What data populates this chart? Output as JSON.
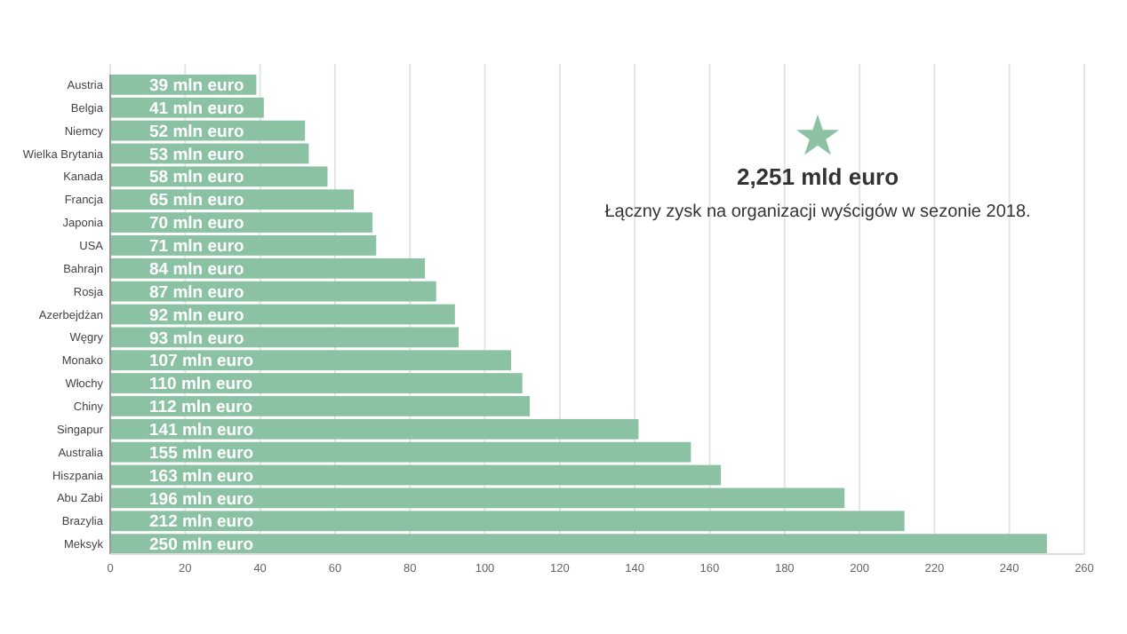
{
  "chart_data": {
    "type": "bar",
    "orientation": "horizontal",
    "categories": [
      "Austria",
      "Belgia",
      "Niemcy",
      "Wielka Brytania",
      "Kanada",
      "Francja",
      "Japonia",
      "USA",
      "Bahrajn",
      "Rosja",
      "Azerbejdżan",
      "Węgry",
      "Monako",
      "Włochy",
      "Chiny",
      "Singapur",
      "Australia",
      "Hiszpania",
      "Abu Zabi",
      "Brazylia",
      "Meksyk"
    ],
    "values": [
      39,
      41,
      52,
      53,
      58,
      65,
      70,
      71,
      84,
      87,
      92,
      93,
      107,
      110,
      112,
      141,
      155,
      163,
      196,
      212,
      250
    ],
    "value_labels": [
      "39 mln euro",
      "41 mln euro",
      "52 mln euro",
      "53 mln euro",
      "58 mln euro",
      "65 mln euro",
      "70 mln euro",
      "71 mln euro",
      "84 mln euro",
      "87 mln euro",
      "92 mln euro",
      "93 mln euro",
      "107 mln euro",
      "110 mln euro",
      "112 mln euro",
      "141 mln euro",
      "155 mln euro",
      "163 mln euro",
      "196 mln euro",
      "212 mln euro",
      "250 mln euro"
    ],
    "color": "#8cc2a4",
    "xlim": [
      0,
      260
    ],
    "xticks": [
      0,
      20,
      40,
      60,
      80,
      100,
      120,
      140,
      160,
      180,
      200,
      220,
      240,
      260
    ],
    "grid": "x",
    "annotations": [
      "2,251 mld euro",
      "Łączny zysk na organizacji wyścigów w sezonie 2018."
    ]
  }
}
